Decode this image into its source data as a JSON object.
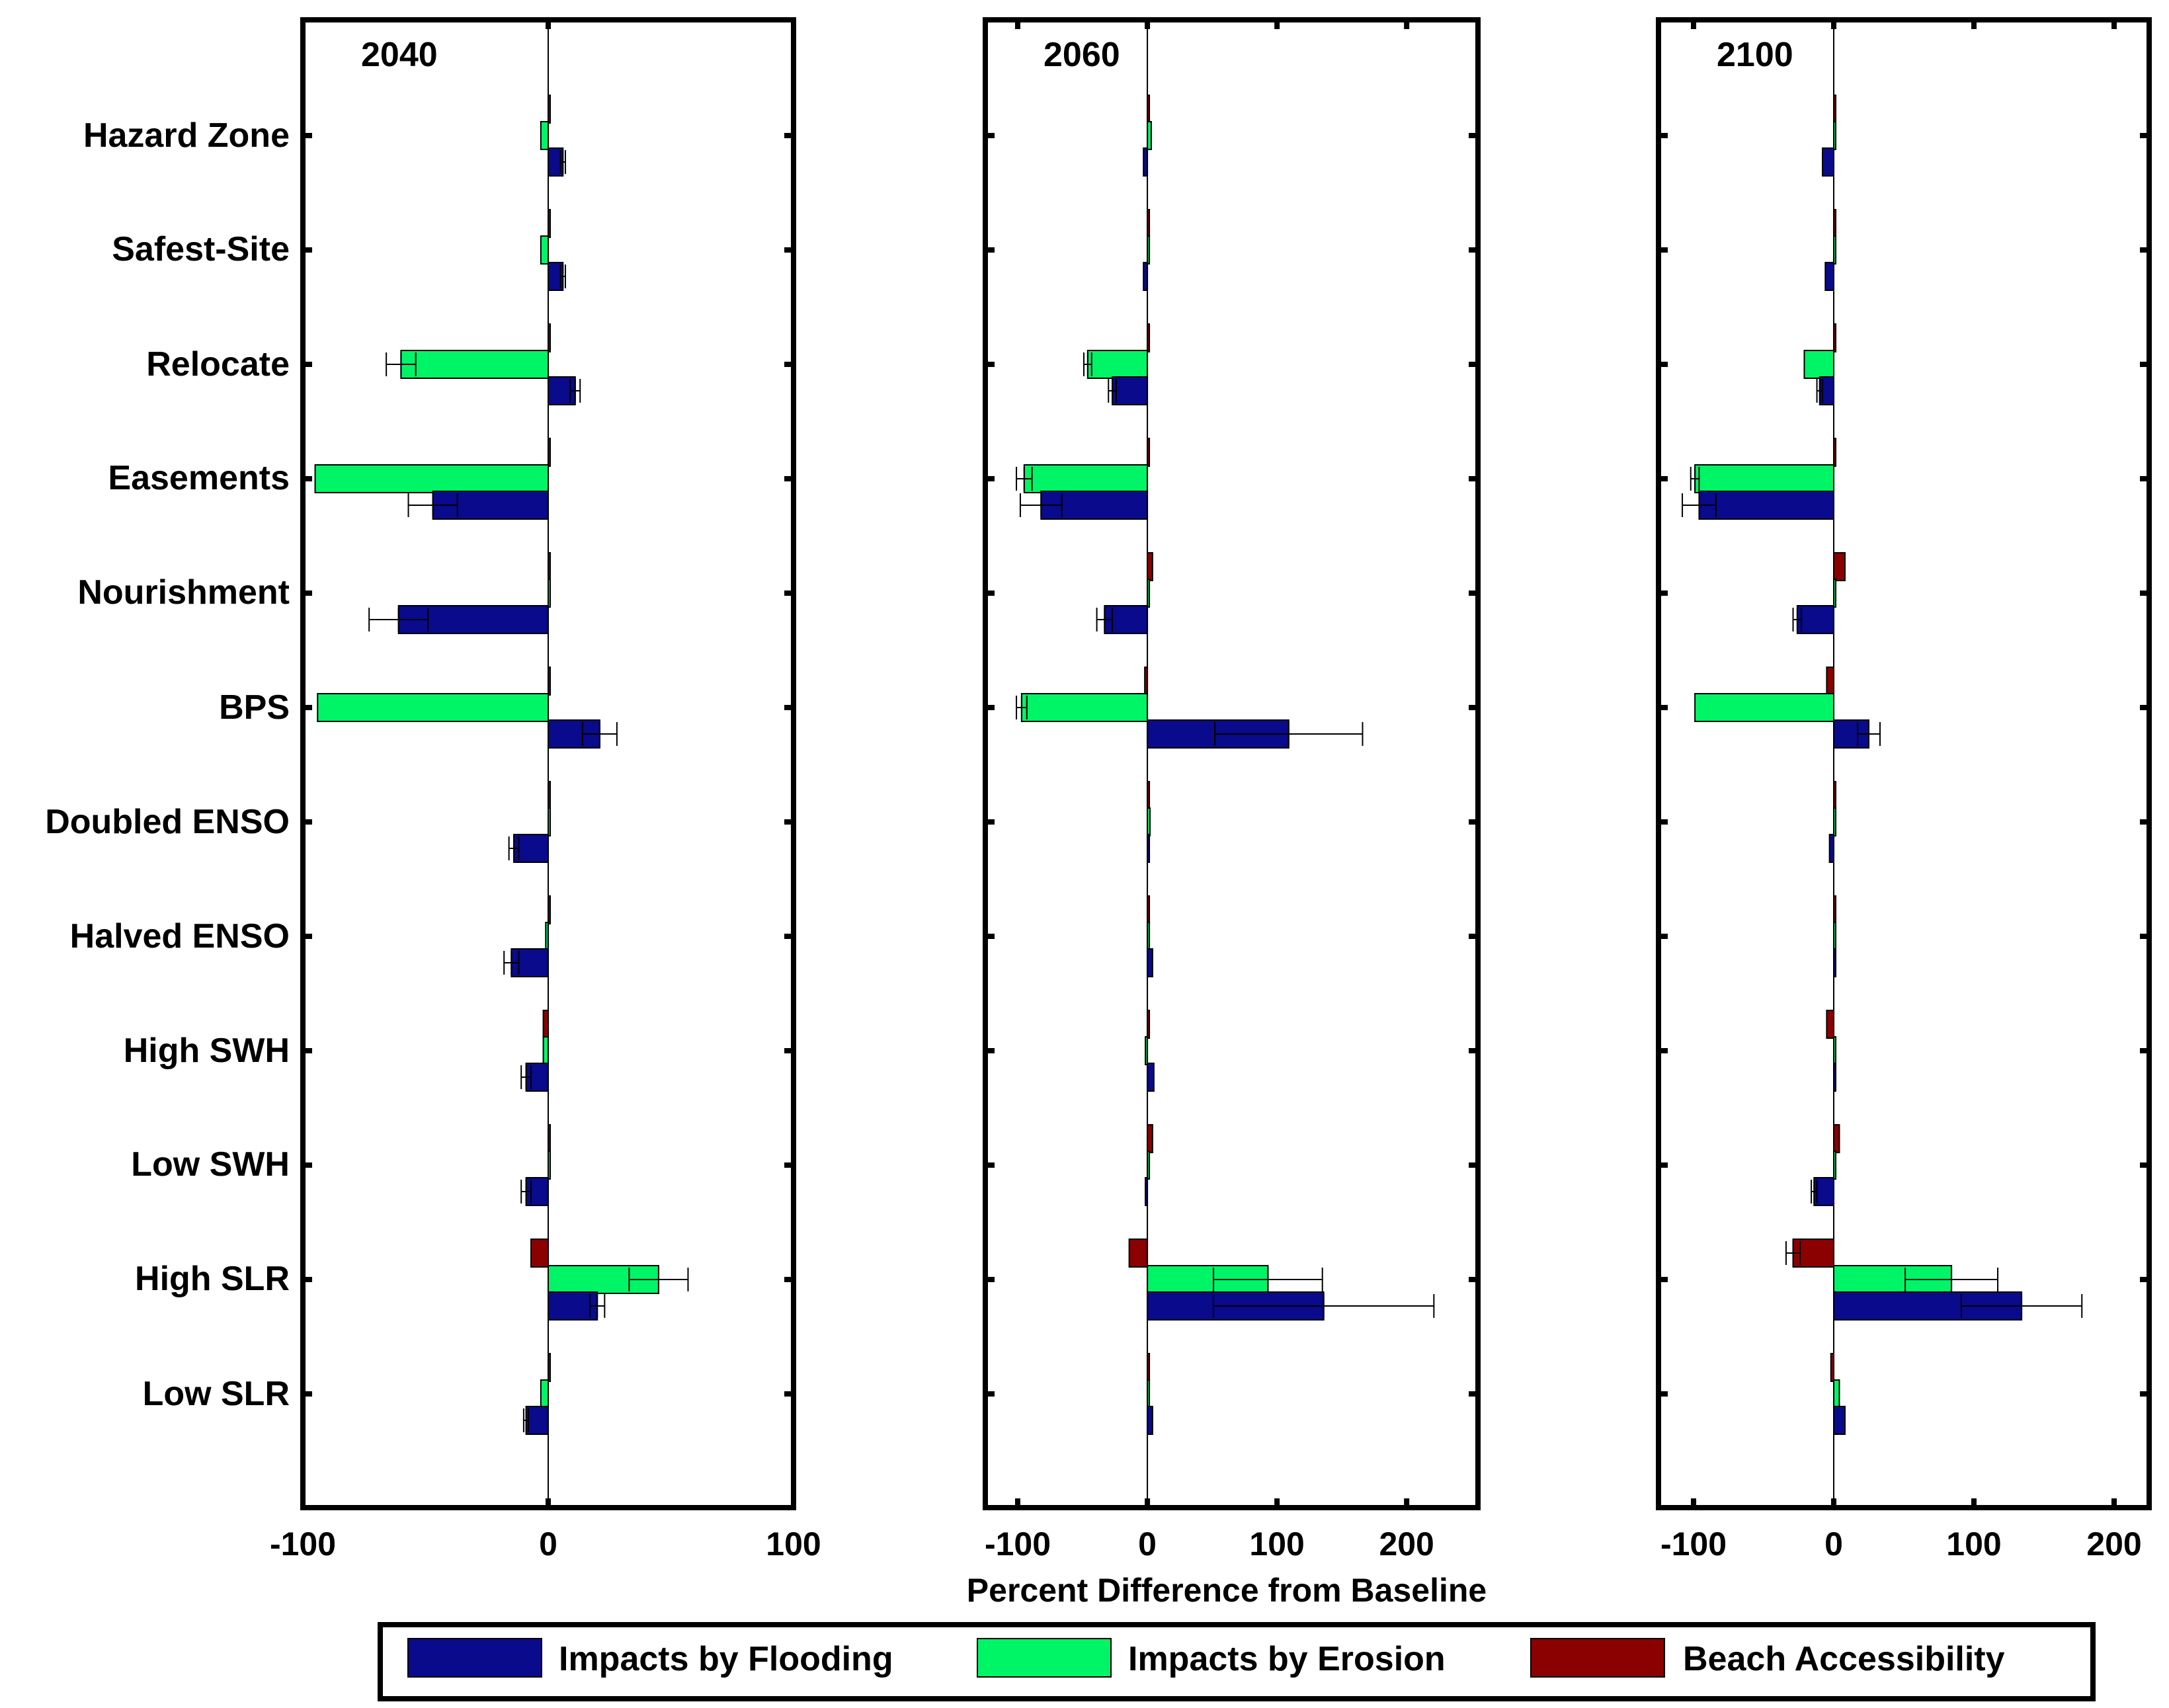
{
  "chart_data": {
    "type": "bar",
    "orientation": "horizontal",
    "xlabel": "Percent Difference from Baseline",
    "categories": [
      "Hazard Zone",
      "Safest-Site",
      "Relocate",
      "Easements",
      "Nourishment",
      "BPS",
      "Doubled ENSO",
      "Halved ENSO",
      "High SWH",
      "Low SWH",
      "High SLR",
      "Low SLR"
    ],
    "colors": {
      "flooding": "#0a0a8c",
      "erosion": "#00f566",
      "access": "#8b0000"
    },
    "legend": [
      {
        "key": "flooding",
        "label": "Impacts by Flooding"
      },
      {
        "key": "erosion",
        "label": "Impacts by Erosion"
      },
      {
        "key": "access",
        "label": "Beach Accessibility"
      }
    ],
    "panels": [
      {
        "title": "2040",
        "xlim": [
          -100,
          100
        ],
        "xticks": [
          -100,
          0,
          100
        ],
        "xtick_labels": [
          "-100",
          "0",
          "100"
        ],
        "series": [
          {
            "key": "access",
            "values": [
              0,
              0,
              0,
              0,
              0,
              0,
              0,
              0,
              -2,
              0,
              -7,
              0
            ],
            "errors": [
              0,
              0,
              0,
              0,
              0,
              0,
              0,
              0,
              0,
              0,
              0,
              0
            ]
          },
          {
            "key": "erosion",
            "values": [
              -3,
              -3,
              -60,
              -95,
              0,
              -94,
              0,
              -1,
              -2,
              0,
              45,
              -3
            ],
            "errors": [
              0,
              0,
              6,
              0,
              0,
              0,
              0,
              0,
              0,
              0,
              12,
              0
            ]
          },
          {
            "key": "flooding",
            "values": [
              6,
              6,
              11,
              -47,
              -61,
              21,
              -14,
              -15,
              -9,
              -9,
              20,
              -9
            ],
            "errors": [
              1,
              1,
              2,
              10,
              12,
              7,
              2,
              3,
              2,
              2,
              3,
              1
            ]
          }
        ]
      },
      {
        "title": "2060",
        "xlim": [
          -125,
          255
        ],
        "xticks": [
          -100,
          0,
          100,
          200
        ],
        "xtick_labels": [
          "-100",
          "0",
          "100",
          "200"
        ],
        "series": [
          {
            "key": "access",
            "values": [
              0,
              0,
              0,
              0,
              4,
              -2,
              0,
              0,
              0,
              4,
              -14,
              0
            ],
            "errors": [
              0,
              0,
              0,
              0,
              0,
              0,
              0,
              0,
              0,
              0,
              0,
              0
            ]
          },
          {
            "key": "erosion",
            "values": [
              3,
              1,
              -46,
              -95,
              0,
              -97,
              2,
              0,
              -1,
              0,
              93,
              1
            ],
            "errors": [
              0,
              0,
              3,
              6,
              0,
              4,
              0,
              0,
              0,
              0,
              42,
              0
            ]
          },
          {
            "key": "flooding",
            "values": [
              -3,
              -3,
              -27,
              -82,
              -33,
              109,
              0,
              4,
              5,
              -1,
              136,
              4
            ],
            "errors": [
              0,
              0,
              3,
              16,
              6,
              57,
              0,
              0,
              0,
              0,
              85,
              0
            ]
          }
        ]
      },
      {
        "title": "2100",
        "xlim": [
          -125,
          225
        ],
        "xticks": [
          -100,
          0,
          100,
          200
        ],
        "xtick_labels": [
          "-100",
          "0",
          "100",
          "200"
        ],
        "series": [
          {
            "key": "access",
            "values": [
              0,
              0,
              0,
              0,
              8,
              -5,
              0,
              0,
              -5,
              4,
              -29,
              -2
            ],
            "errors": [
              0,
              0,
              0,
              0,
              0,
              0,
              0,
              0,
              0,
              0,
              5,
              0
            ]
          },
          {
            "key": "erosion",
            "values": [
              0,
              0,
              -21,
              -99,
              0,
              -99,
              0,
              0,
              0,
              0,
              84,
              4
            ],
            "errors": [
              0,
              0,
              0,
              3,
              0,
              0,
              0,
              0,
              0,
              0,
              33,
              0
            ]
          },
          {
            "key": "flooding",
            "values": [
              -8,
              -6,
              -10,
              -96,
              -26,
              25,
              -3,
              0,
              0,
              -14,
              134,
              8
            ],
            "errors": [
              0,
              0,
              2,
              12,
              3,
              8,
              0,
              0,
              0,
              2,
              43,
              0
            ]
          }
        ]
      }
    ]
  }
}
